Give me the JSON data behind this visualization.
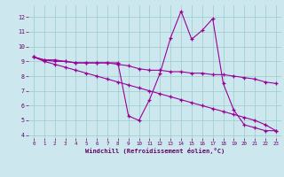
{
  "xlabel": "Windchill (Refroidissement éolien,°C)",
  "bg_color": "#cce8ee",
  "grid_color": "#99cccc",
  "line_color": "#990099",
  "axis_label_color": "#660066",
  "series": [
    [
      9.3,
      9.1,
      9.0,
      9.0,
      8.9,
      8.9,
      8.9,
      8.9,
      8.9,
      5.3,
      5.0,
      6.4,
      8.2,
      10.6,
      12.4,
      10.5,
      11.1,
      11.9,
      7.5,
      5.7,
      4.7,
      4.5,
      4.3,
      4.3
    ],
    [
      9.3,
      9.0,
      8.8,
      8.6,
      8.4,
      8.2,
      8.0,
      7.8,
      7.6,
      7.4,
      7.2,
      7.0,
      6.8,
      6.6,
      6.4,
      6.2,
      6.0,
      5.8,
      5.6,
      5.4,
      5.2,
      5.0,
      4.7,
      4.3
    ],
    [
      9.3,
      9.1,
      9.1,
      9.0,
      8.9,
      8.9,
      8.9,
      8.9,
      8.8,
      8.7,
      8.5,
      8.4,
      8.4,
      8.3,
      8.3,
      8.2,
      8.2,
      8.1,
      8.1,
      8.0,
      7.9,
      7.8,
      7.6,
      7.5
    ]
  ],
  "xlim": [
    -0.5,
    23.5
  ],
  "ylim": [
    3.8,
    12.8
  ],
  "yticks": [
    4,
    5,
    6,
    7,
    8,
    9,
    10,
    11,
    12
  ],
  "xticks": [
    0,
    1,
    2,
    3,
    4,
    5,
    6,
    7,
    8,
    9,
    10,
    11,
    12,
    13,
    14,
    15,
    16,
    17,
    18,
    19,
    20,
    21,
    22,
    23
  ]
}
